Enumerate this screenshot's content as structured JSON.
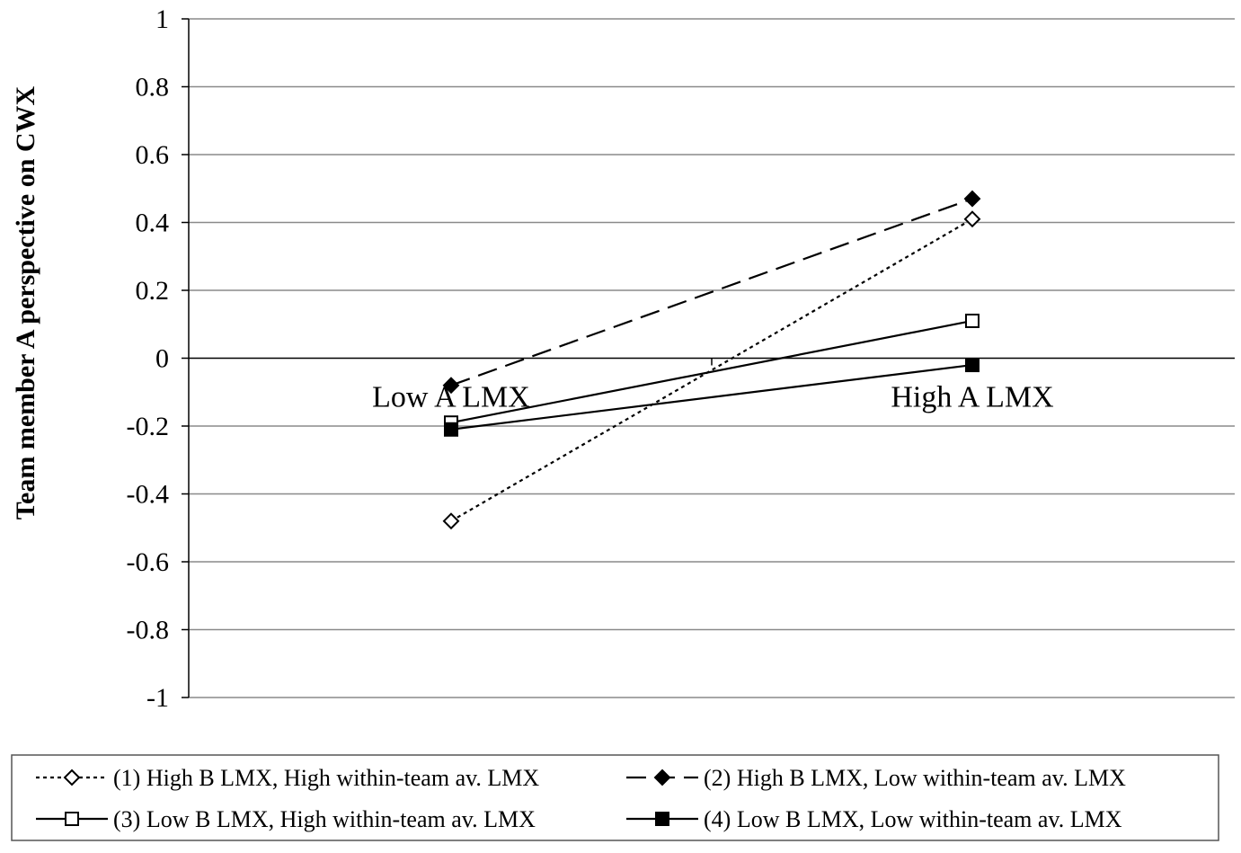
{
  "chart_data": {
    "type": "line",
    "title": "",
    "xlabel": "",
    "ylabel": "Team member A perspective on CWX",
    "ylim": [
      -1,
      1
    ],
    "yticks": [
      1,
      0.8,
      0.6,
      0.4,
      0.2,
      0,
      -0.2,
      -0.4,
      -0.6,
      -0.8,
      -1
    ],
    "ytick_labels": [
      "1",
      "0.8",
      "0.6",
      "0.4",
      "0.2",
      "0",
      "-0.2",
      "-0.4",
      "-0.6",
      "-0.8",
      "-1"
    ],
    "categories": [
      "Low A LMX",
      "High A LMX"
    ],
    "grid": true,
    "legend_position": "bottom",
    "series": [
      {
        "name": "(1) High B LMX, High within-team av. LMX",
        "values": [
          -0.48,
          0.41
        ],
        "line": "dotted",
        "marker": "diamond-open",
        "color": "#000000"
      },
      {
        "name": "(2) High B LMX, Low within-team av. LMX",
        "values": [
          -0.08,
          0.47
        ],
        "line": "dashed",
        "marker": "diamond-filled",
        "color": "#000000"
      },
      {
        "name": "(3) Low B LMX, High within-team av. LMX",
        "values": [
          -0.19,
          0.11
        ],
        "line": "solid",
        "marker": "square-open",
        "color": "#000000"
      },
      {
        "name": "(4) Low B LMX, Low within-team av. LMX",
        "values": [
          -0.21,
          -0.02
        ],
        "line": "solid",
        "marker": "square-filled",
        "color": "#000000"
      }
    ]
  }
}
